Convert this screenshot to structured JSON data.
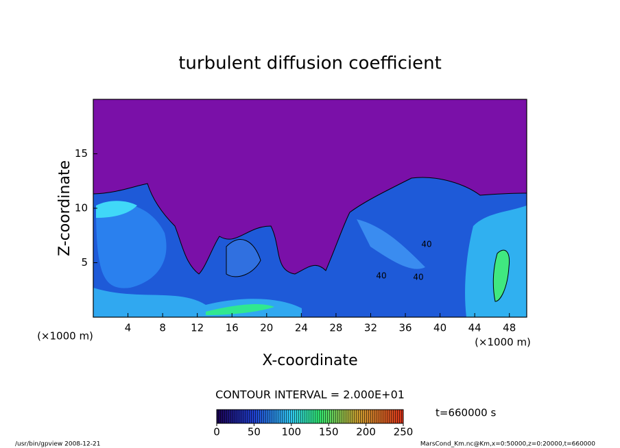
{
  "chart_data": {
    "type": "contour",
    "title": "turbulent diffusion coefficient",
    "xlabel": "X-coordinate",
    "ylabel": "Z-coordinate",
    "x_unit": "(×1000 m)",
    "x_unit_right": "(×1000 m)",
    "xlim": [
      0,
      50
    ],
    "xticks": [
      4,
      8,
      12,
      16,
      20,
      24,
      28,
      32,
      36,
      40,
      44,
      48
    ],
    "ylim": [
      0,
      20
    ],
    "yticks": [
      5,
      10,
      15
    ],
    "contour_interval_text": "CONTOUR INTERVAL = 2.000E+01",
    "contour_labels": [
      "40",
      "40",
      "40"
    ],
    "colorbar": {
      "lim": [
        0,
        250
      ],
      "ticks": [
        0,
        50,
        100,
        150,
        200,
        250
      ]
    },
    "time_text": "t=660000 s",
    "footer_left": "/usr/bin/gpview  2008-12-21",
    "footer_right": "MarsCond_Km.nc@Km,x=0:50000,z=0:20000,t=660000"
  }
}
